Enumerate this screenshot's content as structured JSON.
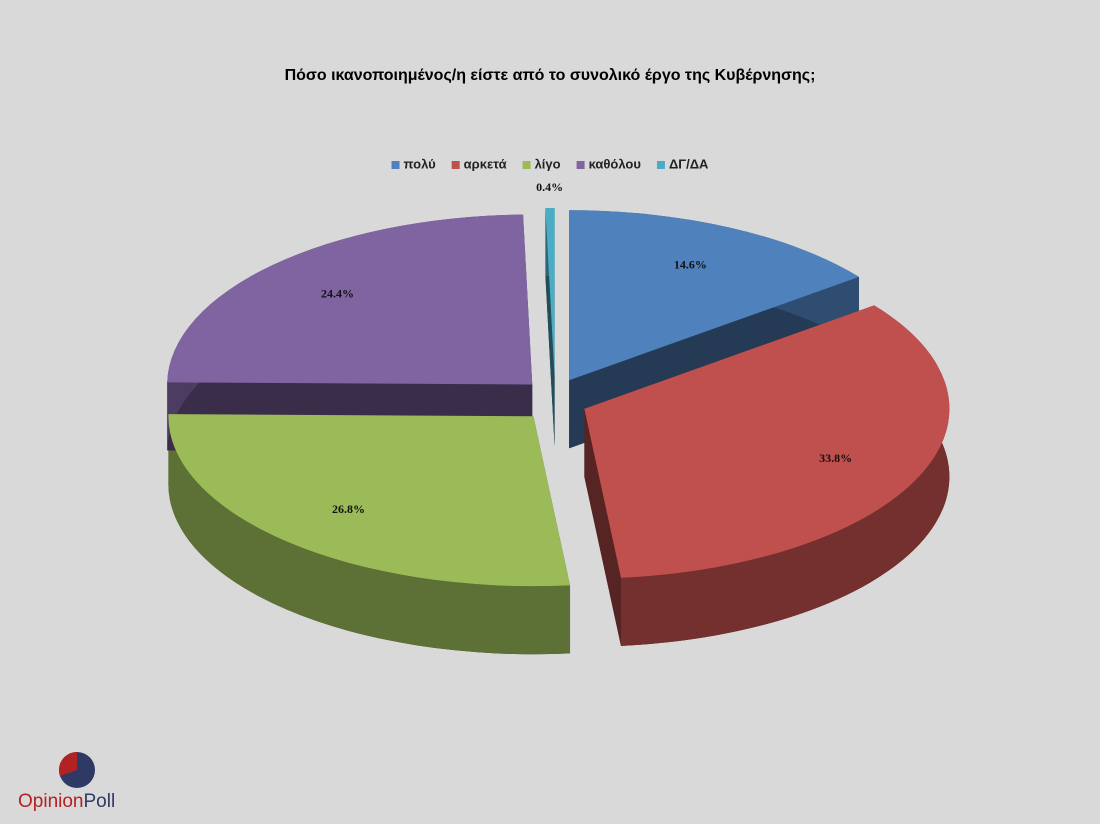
{
  "chart_data": {
    "type": "pie3d",
    "title": "Πόσο ικανοποιημένος/η  είστε από το συνολικό έργο της Κυβέρνησης;",
    "categories": [
      "πολύ",
      "αρκετά",
      "λίγο",
      "καθόλου",
      "ΔΓ/ΔΑ"
    ],
    "values": [
      14.6,
      33.8,
      26.8,
      24.4,
      0.4
    ],
    "value_labels": [
      "14.6%",
      "33.8%",
      "26.8%",
      "24.4%",
      "0.4%"
    ],
    "colors": [
      "#4f81bd",
      "#c0504d",
      "#9bbb59",
      "#8064a2",
      "#4bacc6"
    ],
    "legend": "top"
  },
  "logo": {
    "first": "Opinion",
    "second": "Poll"
  }
}
